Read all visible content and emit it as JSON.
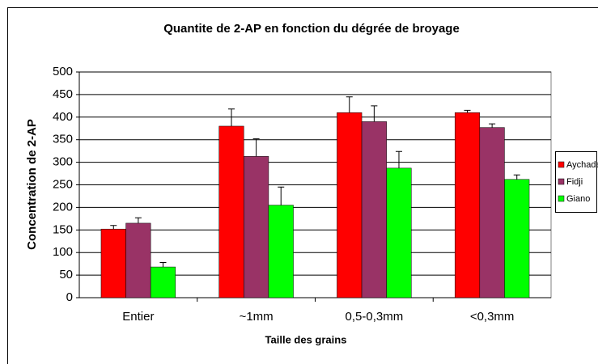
{
  "chart_data": {
    "type": "bar",
    "title": "Quantite de 2-AP en fonction du dégrée de broyage",
    "x_label": "Taille des grains",
    "y_label": "Concentration de 2-AP",
    "categories": [
      "Entier",
      "~1mm",
      "0,5-0,3mm",
      "<0,3mm"
    ],
    "series": [
      {
        "name": "Aychade",
        "color": "#ff0000",
        "values": [
          152,
          380,
          410,
          410
        ],
        "errors": [
          8,
          38,
          35,
          5
        ]
      },
      {
        "name": "Fidji",
        "color": "#993366",
        "values": [
          165,
          313,
          390,
          377
        ],
        "errors": [
          12,
          39,
          35,
          8
        ]
      },
      {
        "name": "Giano",
        "color": "#00ff00",
        "values": [
          68,
          205,
          287,
          262
        ],
        "errors": [
          10,
          40,
          37,
          10
        ]
      }
    ],
    "ylim": [
      0,
      500
    ],
    "yticks": [
      0,
      50,
      100,
      150,
      200,
      250,
      300,
      350,
      400,
      450,
      500
    ],
    "grid": true,
    "legend": "right"
  }
}
